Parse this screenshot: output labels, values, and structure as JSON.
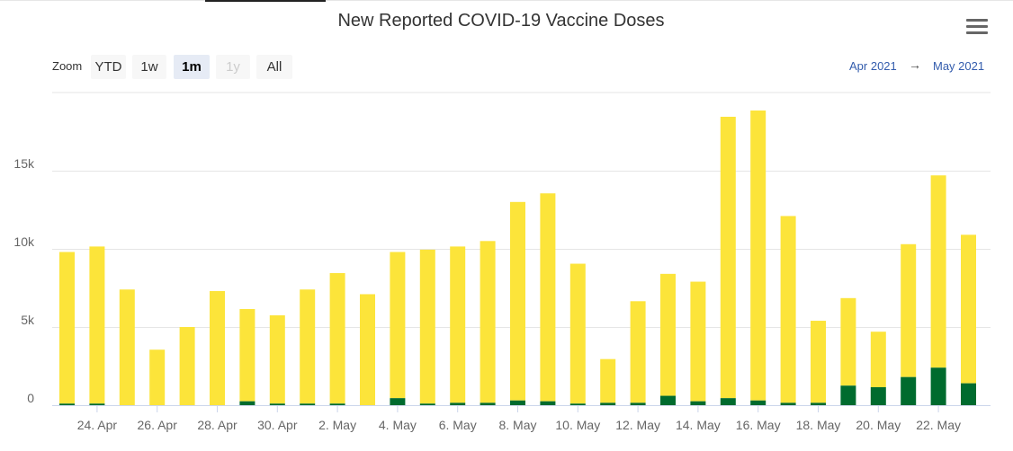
{
  "title": "New Reported COVID-19 Vaccine Doses",
  "menu_icon": "hamburger-menu-icon",
  "zoom": {
    "label": "Zoom",
    "buttons": [
      {
        "label": "YTD",
        "state": "normal"
      },
      {
        "label": "1w",
        "state": "normal"
      },
      {
        "label": "1m",
        "state": "active"
      },
      {
        "label": "1y",
        "state": "disabled"
      },
      {
        "label": "All",
        "state": "normal"
      }
    ]
  },
  "range": {
    "from": "Apr 2021",
    "arrow": "→",
    "to": "May 2021"
  },
  "colors": {
    "first_dose": "#fce43a",
    "second_dose": "#006b2e",
    "grid": "#e6e6e6",
    "axis_text": "#666666"
  },
  "chart_data": {
    "type": "bar",
    "stacked": true,
    "title": "New Reported COVID-19 Vaccine Doses",
    "categories": [
      "23 Apr",
      "24 Apr",
      "25 Apr",
      "26 Apr",
      "27 Apr",
      "28 Apr",
      "29 Apr",
      "30 Apr",
      "1 May",
      "2 May",
      "3 May",
      "4 May",
      "5 May",
      "6 May",
      "7 May",
      "8 May",
      "9 May",
      "10 May",
      "11 May",
      "12 May",
      "13 May",
      "14 May",
      "15 May",
      "16 May",
      "17 May",
      "18 May",
      "19 May",
      "20 May",
      "21 May",
      "22 May",
      "23 May"
    ],
    "series": [
      {
        "name": "Second dose",
        "color": "#006b2e",
        "values": [
          100,
          100,
          0,
          0,
          0,
          0,
          250,
          100,
          100,
          100,
          0,
          450,
          100,
          150,
          150,
          300,
          250,
          100,
          150,
          150,
          600,
          250,
          450,
          300,
          150,
          150,
          1250,
          1150,
          1800,
          2400,
          1400
        ]
      },
      {
        "name": "First dose",
        "color": "#fce43a",
        "values": [
          9700,
          10050,
          7400,
          3550,
          5000,
          7300,
          5900,
          5650,
          7300,
          8350,
          7100,
          9350,
          9850,
          10000,
          10350,
          12700,
          13300,
          8950,
          2800,
          6500,
          7800,
          7650,
          18000,
          18550,
          11950,
          5250,
          5600,
          3550,
          8500,
          12300,
          9500
        ]
      }
    ],
    "x_tick_labels": [
      "24. Apr",
      "26. Apr",
      "28. Apr",
      "30. Apr",
      "2. May",
      "4. May",
      "6. May",
      "8. May",
      "10. May",
      "12. May",
      "14. May",
      "16. May",
      "18. May",
      "20. May",
      "22. May"
    ],
    "y_ticks": [
      0,
      5000,
      10000,
      15000
    ],
    "y_tick_labels": [
      "0",
      "5k",
      "10k",
      "15k"
    ],
    "ylim": [
      0,
      20000
    ],
    "xlabel": "",
    "ylabel": "",
    "grid": true,
    "legend": "none"
  }
}
